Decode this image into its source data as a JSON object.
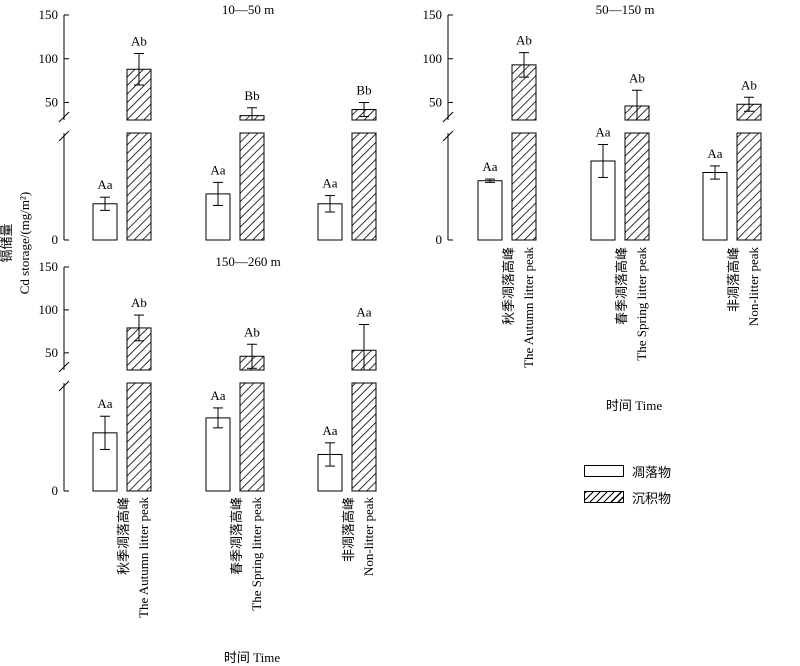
{
  "ylabel_cn": "镉储量",
  "ylabel_en": "Cd storage/(mg/m²)",
  "xlabel": "时间 Time",
  "categories": [
    {
      "cn": "秋季凋落高峰",
      "en": "The Autumn litter peak"
    },
    {
      "cn": "春季凋落高峰",
      "en": "The Spring litter peak"
    },
    {
      "cn": "非凋落高峰",
      "en": "Non-litter peak"
    }
  ],
  "legend": [
    {
      "label": "凋落物",
      "fill": "plain"
    },
    {
      "label": "沉积物",
      "fill": "hatch"
    }
  ],
  "chart_data": [
    {
      "type": "bar",
      "title": "10—50 m",
      "broken_y_axis": true,
      "upper_ticks": [
        50,
        100,
        150
      ],
      "lower_ticks": [
        0
      ],
      "series": [
        {
          "name": "凋落物",
          "values": [
            2.2,
            2.8,
            2.2
          ],
          "errors": [
            0.4,
            0.7,
            0.5
          ],
          "letters": [
            "Aa",
            "Aa",
            "Aa"
          ]
        },
        {
          "name": "沉积物",
          "values": [
            88,
            35,
            42
          ],
          "errors": [
            18,
            9,
            8
          ],
          "letters": [
            "Ab",
            "Bb",
            "Bb"
          ]
        }
      ]
    },
    {
      "type": "bar",
      "title": "50—150 m",
      "broken_y_axis": true,
      "upper_ticks": [
        50,
        100,
        150
      ],
      "lower_ticks": [
        0
      ],
      "series": [
        {
          "name": "凋落物",
          "values": [
            3.6,
            4.8,
            4.1
          ],
          "errors": [
            0.1,
            1.0,
            0.4
          ],
          "letters": [
            "Aa",
            "Aa",
            "Aa"
          ]
        },
        {
          "name": "沉积物",
          "values": [
            93,
            46,
            48
          ],
          "errors": [
            14,
            18,
            8
          ],
          "letters": [
            "Ab",
            "Ab",
            "Ab"
          ]
        }
      ]
    },
    {
      "type": "bar",
      "title": "150—260 m",
      "broken_y_axis": true,
      "upper_ticks": [
        50,
        100,
        150
      ],
      "lower_ticks": [
        0
      ],
      "series": [
        {
          "name": "凋落物",
          "values": [
            3.5,
            4.4,
            2.2
          ],
          "errors": [
            1.0,
            0.6,
            0.7
          ],
          "letters": [
            "Aa",
            "Aa",
            "Aa"
          ]
        },
        {
          "name": "沉积物",
          "values": [
            79,
            46,
            53
          ],
          "errors": [
            15,
            14,
            30
          ],
          "letters": [
            "Ab",
            "Ab",
            "Aa"
          ]
        }
      ]
    }
  ]
}
